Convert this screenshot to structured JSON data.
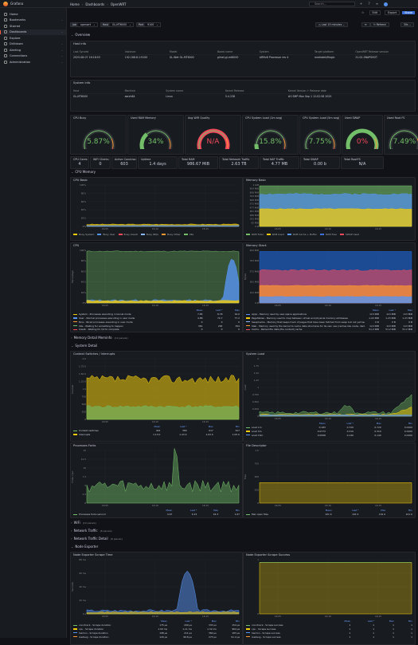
{
  "app": {
    "name": "Grafana"
  },
  "breadcrumb": {
    "home": "Home",
    "dashboards": "Dashboards",
    "current": "OpenWRT"
  },
  "search": {
    "placeholder": "Search..."
  },
  "sidebar": {
    "items": [
      {
        "label": "Home",
        "icon": "home-icon"
      },
      {
        "label": "Bookmarks",
        "icon": "bookmark-icon"
      },
      {
        "label": "Starred",
        "icon": "star-icon"
      },
      {
        "label": "Dashboards",
        "icon": "apps-icon",
        "active": true
      },
      {
        "label": "Explore",
        "icon": "compass-icon"
      },
      {
        "label": "Drilldown",
        "icon": "drilldown-icon"
      },
      {
        "label": "Alerting",
        "icon": "bell-icon"
      },
      {
        "label": "Connections",
        "icon": "plug-icon"
      },
      {
        "label": "Administration",
        "icon": "cog-icon"
      }
    ]
  },
  "toolbar": {
    "edit": "Edit",
    "export": "Export",
    "share": "Share",
    "time_range": "Last 15 minutes",
    "refresh": "Refresh",
    "refresh_interval": "30s"
  },
  "variables": [
    {
      "key": "Job",
      "value": "openwrt"
    },
    {
      "key": "Host",
      "value": "GL-MT6000"
    },
    {
      "key": "Port",
      "value": "9100"
    }
  ],
  "rows": {
    "overview": "Overview",
    "cpu_memory": "CPU Memory",
    "memory_meminfo": "Memory Detail Meminfo",
    "memory_meminfo_count": "(10 panels)",
    "system_detail": "System Detail",
    "wifi": "WiFi",
    "wifi_count": "(10 panels)",
    "network_traffic": "Network Traffic",
    "network_traffic_count": "(6 panels)",
    "network_traffic_detail": "Network Traffic Detail",
    "network_traffic_detail_count": "(8 panels)",
    "node_exporter": "Node Exporter"
  },
  "host_info": {
    "title": "Host info",
    "headers": [
      "Last Synced",
      "Instance",
      "Model",
      "Board name",
      "System",
      "Target platform",
      "OpenWRT Release version"
    ],
    "values": [
      "2025-08-07 16:18:03",
      "192.168.8.1:9100",
      "GL.iNet GL-MT6000",
      "glinet,gl-mt6000",
      "ARMv8 Processor rev 4",
      "mediatek/filogic",
      "21.02-SNAPSHOT"
    ]
  },
  "system_info": {
    "title": "System info",
    "headers": [
      "Host",
      "Machine",
      "System name",
      "Kernel Release",
      "Kernel Version + Release date"
    ],
    "values": [
      "GL-MT6000",
      "aarch64",
      "Linux",
      "5.4.238",
      "#0 SMP Mon Sep 1 12:02:58 2025"
    ]
  },
  "gauges": [
    {
      "title": "CPU Busy",
      "value": "5.87%",
      "pct": 5.87,
      "color": "#73bf69"
    },
    {
      "title": "Used RAM Memory",
      "value": "34%",
      "pct": 34,
      "color": "#73bf69"
    },
    {
      "title": "Avg WiFi Quality",
      "value": "N/A",
      "pct": 0,
      "color": "#f2495c"
    },
    {
      "title": "CPU System Load (1m avg)",
      "value": "15.8%",
      "pct": 15.8,
      "color": "#73bf69"
    },
    {
      "title": "CPU System Load (5m avg)",
      "value": "7.75%",
      "pct": 7.75,
      "color": "#73bf69"
    },
    {
      "title": "Used SWAP",
      "value": "0%",
      "pct": 0,
      "color": "#73bf69"
    },
    {
      "title": "Used Root FS",
      "value": "7.49%",
      "pct": 7.49,
      "color": "#73bf69"
    }
  ],
  "stats": [
    {
      "title": "CPU Cores",
      "value": "4"
    },
    {
      "title": "WiFi Clients",
      "value": "0"
    },
    {
      "title": "Active Conntrack",
      "value": "603"
    },
    {
      "title": "Uptime",
      "value": "1.4 days"
    },
    {
      "title": "Total RAM",
      "value": "986.67 MiB"
    },
    {
      "title": "Total Network Traffic",
      "value": "2.63 TB"
    },
    {
      "title": "Total NAT Traffic",
      "value": "4.77 MB"
    },
    {
      "title": "Total SWAP",
      "value": "0.00 b"
    },
    {
      "title": "Total RootFS",
      "value": "N/A"
    }
  ],
  "cpu_basic": {
    "title": "CPU Basic",
    "y_ticks": [
      "100%",
      "80%",
      "60%",
      "40%",
      "20%",
      "0%"
    ],
    "x_ticks": [
      "16:05",
      "16:10",
      "16:15"
    ],
    "legend": [
      "Busy System",
      "Busy User",
      "Busy Iowait",
      "Busy IRQs",
      "Busy Other",
      "Idle"
    ],
    "colors": [
      "#f2cc0c",
      "#5794f2",
      "#f2495c",
      "#8ab8ff",
      "#ff9830",
      "#73bf69"
    ]
  },
  "memory_basic": {
    "title": "Memory Basic",
    "y_ticks": [
      "1 GiB",
      "954 MiB",
      "858 MiB",
      "763 MiB",
      "668 MiB",
      "572 MiB",
      "477 MiB",
      "381 MiB",
      "286 MiB",
      "191 MiB",
      "95 MiB",
      "0 B"
    ],
    "x_ticks": [
      "16:05",
      "16:10",
      "16:15"
    ],
    "legend": [
      "RAM Total",
      "RAM Used",
      "RAM Cache + Buffer",
      "RAM Free",
      "SWAP Used"
    ],
    "colors": [
      "#73bf69",
      "#f2cc0c",
      "#5794f2",
      "#3d71d9",
      "#f2495c"
    ]
  },
  "cpu": {
    "title": "CPU",
    "ylabel": "Percentage",
    "y_ticks": [
      "100%",
      "80%",
      "60%",
      "40%",
      "20%",
      "0%"
    ],
    "x_ticks": [
      "16:05",
      "16:10",
      "16:15"
    ],
    "stat_headers": [
      "Mean",
      "Last *",
      "Max"
    ],
    "rows": [
      {
        "name": "System - Processes executing in kernel mode",
        "color": "#f2cc0c",
        "v": [
          "7.85",
          "8.78",
          "19.0"
        ]
      },
      {
        "name": "User - Normal processes executing in user mode",
        "color": "#5794f2",
        "v": [
          "4.88",
          "74.7",
          "77.2"
        ]
      },
      {
        "name": "Nice - Niced processes executing in user mode",
        "color": "#ff9830",
        "v": [
          "0",
          "0",
          "0"
        ]
      },
      {
        "name": "Idle - Waiting for something to happen",
        "color": "#73bf69",
        "v": [
          "381",
          "283",
          "394"
        ]
      },
      {
        "name": "Iowait - Waiting for I/O to complete",
        "color": "#f2495c",
        "v": [
          "0",
          "0",
          "0"
        ]
      }
    ]
  },
  "memory_stack": {
    "title": "Memory Stack",
    "ylabel": "Bytes",
    "y_ticks": [
      "954 MiB",
      "763 MiB",
      "572 MiB",
      "381 MiB",
      "191 MiB",
      "0 B"
    ],
    "x_ticks": [
      "16:05",
      "16:10",
      "16:15"
    ],
    "stat_headers": [
      "Mean",
      "Last *",
      "Max"
    ],
    "rows": [
      {
        "name": "Apps - Memory used by user-space applications",
        "color": "#5794f2",
        "v": [
          "113 MiB",
          "113 MiB",
          "113 MiB"
        ]
      },
      {
        "name": "PageTables - Memory used to map between virtual and physical memory addresses",
        "color": "#f2cc0c",
        "v": [
          "1.22 MiB",
          "1.23 MiB",
          "1.23 MiB"
        ]
      },
      {
        "name": "SwapCache - Memory that keeps track of pages that have been fetched from swap but not yet been modified",
        "color": "#8ab8ff",
        "v": [
          "0 B",
          "0 B",
          "0 B"
        ]
      },
      {
        "name": "Slab - Memory used by the kernel to cache data structures for its own use (caches like inode, dentry, etc)",
        "color": "#ff9830",
        "v": [
          "113 MiB",
          "113 MiB",
          "113 MiB"
        ]
      },
      {
        "name": "Cache - Parked file data (file content) cache",
        "color": "#f2495c",
        "v": [
          "51.2 MiB",
          "51.2 MiB",
          "51.2 MiB"
        ]
      }
    ]
  },
  "context_switches": {
    "title": "Context Switches / Interrupts",
    "ylabel": "Counter",
    "y_ticks": [
      "2 K",
      "1.75 K",
      "1.50 K",
      "1.25 K",
      "1 K",
      "750",
      "500",
      "250",
      "0"
    ],
    "x_ticks": [
      "16:05",
      "16:10",
      "16:15"
    ],
    "stat_headers": [
      "Mean",
      "Last *",
      "Max",
      "Min"
    ],
    "rows": [
      {
        "name": "Context switches",
        "color": "#73bf69",
        "v": [
          "402",
          "380",
          "617",
          "327"
        ]
      },
      {
        "name": "Interrupts",
        "color": "#f2cc0c",
        "v": [
          "1.13 K",
          "1.43 K",
          "1.63 K",
          "1.05 K"
        ]
      }
    ]
  },
  "system_load": {
    "title": "System Load",
    "ylabel": "Load",
    "y_ticks": [
      "2",
      "1.75",
      "1.50",
      "1.25",
      "1",
      "0.750",
      "0.500",
      "0.250",
      "0"
    ],
    "x_ticks": [
      "16:05",
      "16:10",
      "16:15"
    ],
    "stat_headers": [
      "Mean",
      "Last *",
      "Max",
      "Min"
    ],
    "rows": [
      {
        "name": "Load 1m",
        "color": "#73bf69",
        "v": [
          "0.183",
          "0.720",
          "0.720",
          "0.0100"
        ]
      },
      {
        "name": "Load 5m",
        "color": "#f2cc0c",
        "v": [
          "0.0773",
          "0.310",
          "0.310",
          "0.0100"
        ]
      },
      {
        "name": "Load 15m",
        "color": "#5794f2",
        "v": [
          "0.0508",
          "0.140",
          "0.140",
          "0.0100"
        ]
      }
    ]
  },
  "processes_forks": {
    "title": "Processes Forks",
    "ylabel": "Forks / sec",
    "y_ticks": [
      "15",
      "12.5",
      "10",
      "7.5",
      "5",
      "2.5",
      "0"
    ],
    "x_ticks": [
      "16:05",
      "16:10",
      "16:15"
    ],
    "stat_headers": [
      "Mean",
      "Last *",
      "Max",
      "Min"
    ],
    "rows": [
      {
        "name": "Processes forks second",
        "color": "#73bf69",
        "v": [
          "4.97",
          "6.15",
          "16.3",
          "1.67"
        ]
      }
    ]
  },
  "file_descriptor": {
    "title": "File Descriptor",
    "ylabel": "Files",
    "y_ticks": [
      "1 K",
      "750",
      "500",
      "250",
      "0"
    ],
    "x_ticks": [
      "16:05",
      "16:10",
      "16:15"
    ],
    "stat_headers": [
      "Mean",
      "Last *",
      "Max",
      "Min"
    ],
    "rows": [
      {
        "name": "Max open files",
        "color": "#73bf69",
        "v": [
          "101 K",
          "101 K",
          "101 K",
          "101 K"
        ]
      },
      {
        "name": "Open files",
        "color": "#f2cc0c",
        "v": [
          "388",
          "416",
          "416",
          "382"
        ]
      }
    ]
  },
  "scrape_time": {
    "title": "Node Exporter Scrape Time",
    "ylabel": "Seconds",
    "y_ticks": [
      "80 ms",
      "60 ms",
      "40 ms",
      "20 ms",
      "0 s"
    ],
    "x_ticks": [
      "16:05",
      "16:10",
      "16:15"
    ],
    "stat_headers": [
      "Mean",
      "Last *",
      "Max",
      "Min"
    ],
    "rows": [
      {
        "name": "conntrack - Scrape duration",
        "color": "#73bf69",
        "v": [
          "175 µs",
          "209 µs",
          "333 µs",
          "154 µs"
        ]
      },
      {
        "name": "cpu - Scrape duration",
        "color": "#f2cc0c",
        "v": [
          "1.09 ms",
          "1.11 ms",
          "1.32 ms",
          "964 µs"
        ]
      },
      {
        "name": "hwmon - Scrape duration",
        "color": "#5794f2",
        "v": [
          "198 µs",
          "211 µs",
          "360 µs",
          "183 µs"
        ]
      },
      {
        "name": "loadavg - Scrape duration",
        "color": "#ff9830",
        "v": [
          "120 µs",
          "99.8 µs",
          "273 µs",
          "91.4 µs"
        ]
      }
    ]
  },
  "scrape_success": {
    "title": "Node Exporter Scrape Success",
    "ylabel": "",
    "y_ticks": [
      "1",
      "",
      "",
      "",
      "0"
    ],
    "x_ticks": [
      "16:05",
      "16:10",
      "16:15"
    ],
    "stat_headers": [
      "Mean",
      "Last *",
      "Max",
      "Min"
    ],
    "rows": [
      {
        "name": "conntrack - Scrape success",
        "color": "#73bf69",
        "v": [
          "1",
          "1",
          "1",
          "1"
        ]
      },
      {
        "name": "cpu - Scrape success",
        "color": "#f2cc0c",
        "v": [
          "1",
          "1",
          "1",
          "1"
        ]
      },
      {
        "name": "hwmon - Scrape success",
        "color": "#5794f2",
        "v": [
          "1",
          "1",
          "1",
          "1"
        ]
      },
      {
        "name": "loadavg - Scrape success",
        "color": "#ff9830",
        "v": [
          "1",
          "1",
          "1",
          "1"
        ]
      }
    ]
  }
}
